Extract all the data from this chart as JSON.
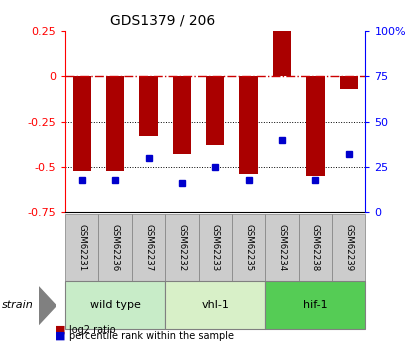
{
  "title": "GDS1379 / 206",
  "samples": [
    "GSM62231",
    "GSM62236",
    "GSM62237",
    "GSM62232",
    "GSM62233",
    "GSM62235",
    "GSM62234",
    "GSM62238",
    "GSM62239"
  ],
  "log2_ratio": [
    -0.52,
    -0.52,
    -0.33,
    -0.43,
    -0.38,
    -0.54,
    0.27,
    -0.55,
    -0.07
  ],
  "percentile_rank": [
    18,
    18,
    30,
    16,
    25,
    18,
    40,
    18,
    32
  ],
  "groups": [
    {
      "name": "wild type",
      "indices": [
        0,
        1,
        2
      ],
      "color": "#c8ecc8"
    },
    {
      "name": "vhl-1",
      "indices": [
        3,
        4,
        5
      ],
      "color": "#d8f0c8"
    },
    {
      "name": "hif-1",
      "indices": [
        6,
        7,
        8
      ],
      "color": "#55cc55"
    }
  ],
  "ylim_left": [
    -0.75,
    0.25
  ],
  "ylim_right": [
    0,
    100
  ],
  "yticks_left": [
    -0.75,
    -0.5,
    -0.25,
    0,
    0.25
  ],
  "yticks_right": [
    0,
    25,
    50,
    75,
    100
  ],
  "bar_color": "#aa0000",
  "dot_color": "#0000cc",
  "bar_width": 0.55,
  "hline_color": "#cc0000",
  "hline_style": "-.",
  "grid_color": "#000000",
  "grid_style": ":",
  "bg_color": "#ffffff",
  "plot_bg": "#ffffff",
  "sample_box_color": "#cccccc",
  "strain_label": "strain",
  "legend_bar_label": "log2 ratio",
  "legend_dot_label": "percentile rank within the sample"
}
